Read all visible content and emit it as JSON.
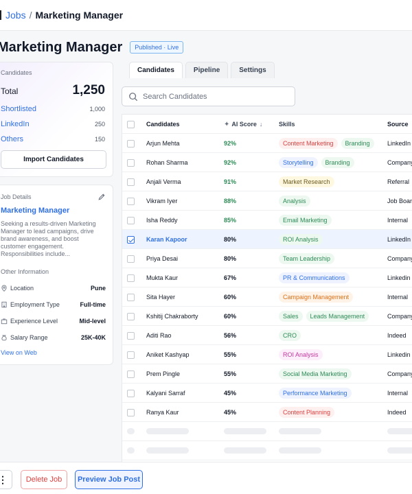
{
  "breadcrumb": {
    "parent": "Jobs",
    "separator": "/",
    "current": "Marketing Manager"
  },
  "header": {
    "title": "Marketing Manager",
    "status": "Published · Live"
  },
  "candidates_card": {
    "label": "Candidates",
    "total_label": "Total",
    "total_value": "1,250",
    "sources": [
      {
        "label": "Shortlisted",
        "value": "1,000"
      },
      {
        "label": "LinkedIn",
        "value": "250"
      },
      {
        "label": "Others",
        "value": "150"
      }
    ],
    "import_label": "Import Candidates"
  },
  "job_card": {
    "label": "Job Details",
    "job_title": "Marketing Manager",
    "description": "Seeking a results-driven Marketing Manager to lead campaigns, drive brand awareness, and boost customer engagement. Responsibilities include...",
    "other_label": "Other Information",
    "info": [
      {
        "icon": "location-pin-icon",
        "label": "Location",
        "value": "Pune"
      },
      {
        "icon": "building-icon",
        "label": "Employment Type",
        "value": "Full-time"
      },
      {
        "icon": "briefcase-icon",
        "label": "Experience Level",
        "value": "Mid-level"
      },
      {
        "icon": "money-bag-icon",
        "label": "Salary Range",
        "value": "25K-40K"
      }
    ],
    "view_web": "View on Web"
  },
  "tabs": [
    {
      "label": "Candidates",
      "active": true
    },
    {
      "label": "Pipeline",
      "active": false
    },
    {
      "label": "Settings",
      "active": false
    }
  ],
  "search": {
    "placeholder": "Search Candidates"
  },
  "table": {
    "columns": {
      "name": "Candidates",
      "score": "AI Score",
      "skills": "Skills",
      "source": "Source"
    },
    "rows": [
      {
        "name": "Arjun Mehta",
        "score": "92%",
        "skills": [
          {
            "label": "Content Marketing",
            "color": "red"
          },
          {
            "label": "Branding",
            "color": "green"
          }
        ],
        "source": "LinkedIn",
        "selected": false
      },
      {
        "name": "Rohan Sharma",
        "score": "92%",
        "skills": [
          {
            "label": "Storytelling",
            "color": "blue"
          },
          {
            "label": "Branding",
            "color": "green"
          }
        ],
        "source": "Company",
        "selected": false
      },
      {
        "name": "Anjali Verma",
        "score": "91%",
        "skills": [
          {
            "label": "Market Research",
            "color": "yellow"
          }
        ],
        "source": "Referral",
        "selected": false
      },
      {
        "name": "Vikram Iyer",
        "score": "88%",
        "skills": [
          {
            "label": "Analysis",
            "color": "green"
          }
        ],
        "source": "Job Board",
        "selected": false
      },
      {
        "name": "Isha Reddy",
        "score": "85%",
        "skills": [
          {
            "label": "Email Marketing",
            "color": "green"
          }
        ],
        "source": "Internal",
        "selected": false
      },
      {
        "name": "Karan Kapoor",
        "score": "80%",
        "skills": [
          {
            "label": "ROI Analysis",
            "color": "green"
          }
        ],
        "source": "LinkedIn",
        "selected": true
      },
      {
        "name": "Priya Desai",
        "score": "80%",
        "skills": [
          {
            "label": "Team Leadership",
            "color": "green"
          }
        ],
        "source": "Company",
        "selected": false
      },
      {
        "name": "Mukta Kaur",
        "score": "67%",
        "skills": [
          {
            "label": "PR & Communications",
            "color": "blue"
          }
        ],
        "source": "Linkedin",
        "selected": false
      },
      {
        "name": "Sita Hayer",
        "score": "60%",
        "skills": [
          {
            "label": "Campaign Management",
            "color": "orange"
          }
        ],
        "source": "Internal",
        "selected": false
      },
      {
        "name": "Kshitij Chakraborty",
        "score": "60%",
        "skills": [
          {
            "label": "Sales",
            "color": "green"
          },
          {
            "label": "Leads Management",
            "color": "green"
          }
        ],
        "source": "Company",
        "selected": false
      },
      {
        "name": "Aditi Rao",
        "score": "56%",
        "skills": [
          {
            "label": "CRO",
            "color": "green"
          }
        ],
        "source": "Indeed",
        "selected": false
      },
      {
        "name": "Aniket Kashyap",
        "score": "55%",
        "skills": [
          {
            "label": "ROI Analysis",
            "color": "pink"
          }
        ],
        "source": "Linkedin",
        "selected": false
      },
      {
        "name": "Prem Pingle",
        "score": "55%",
        "skills": [
          {
            "label": "Social Media Marketing",
            "color": "green"
          }
        ],
        "source": "Company",
        "selected": false
      },
      {
        "name": "Kalyani Sarraf",
        "score": "45%",
        "skills": [
          {
            "label": "Performance Marketing",
            "color": "blue"
          }
        ],
        "source": "Internal",
        "selected": false
      },
      {
        "name": "Ranya Kaur",
        "score": "45%",
        "skills": [
          {
            "label": "Content Planning",
            "color": "red"
          }
        ],
        "source": "Indeed",
        "selected": false
      }
    ]
  },
  "footer": {
    "more_label": "⋮",
    "delete_label": "Delete Job",
    "preview_label": "Preview Job Post"
  },
  "colors": {
    "accent": "#2f6fe4",
    "danger": "#d9413e",
    "success": "#2e8b57"
  }
}
